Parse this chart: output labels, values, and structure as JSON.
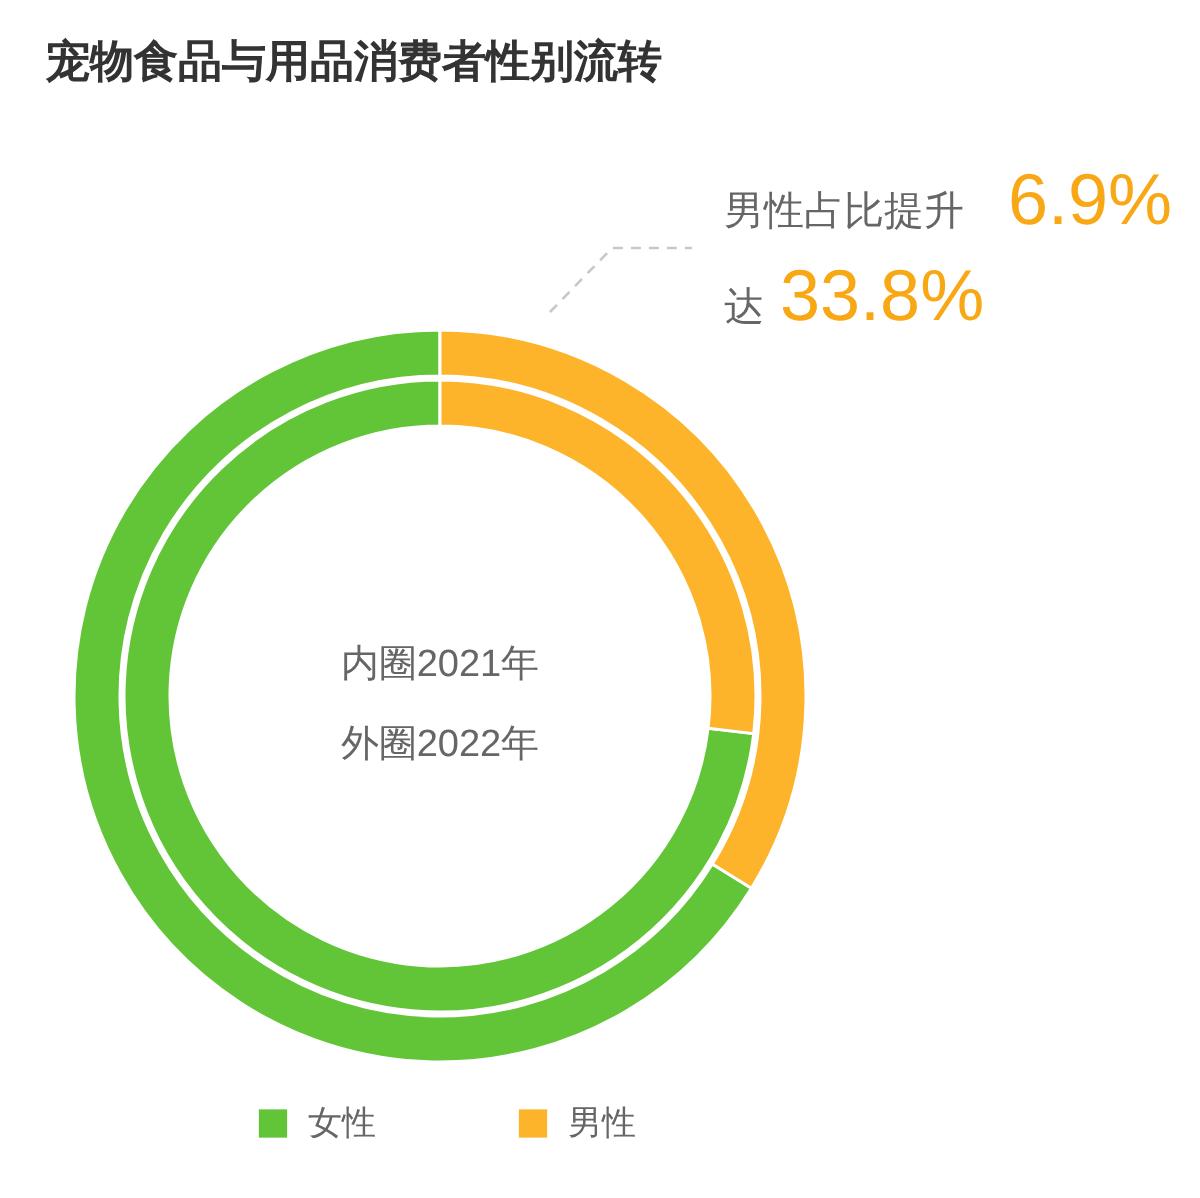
{
  "chart_data": {
    "type": "donut",
    "title": "宠物食品与用品消费者性别流转",
    "categories": [
      "女性",
      "男性"
    ],
    "colors": [
      "#62c538",
      "#fdb42b"
    ],
    "series": [
      {
        "values": [
          73.1,
          26.9
        ]
      },
      {
        "values": [
          66.2,
          33.8
        ]
      }
    ],
    "annotations": [
      "男性占比提升",
      "6.9%",
      "达",
      "33.8%",
      "内圈2021年",
      "外圈2022年"
    ],
    "legend": "bottom"
  }
}
